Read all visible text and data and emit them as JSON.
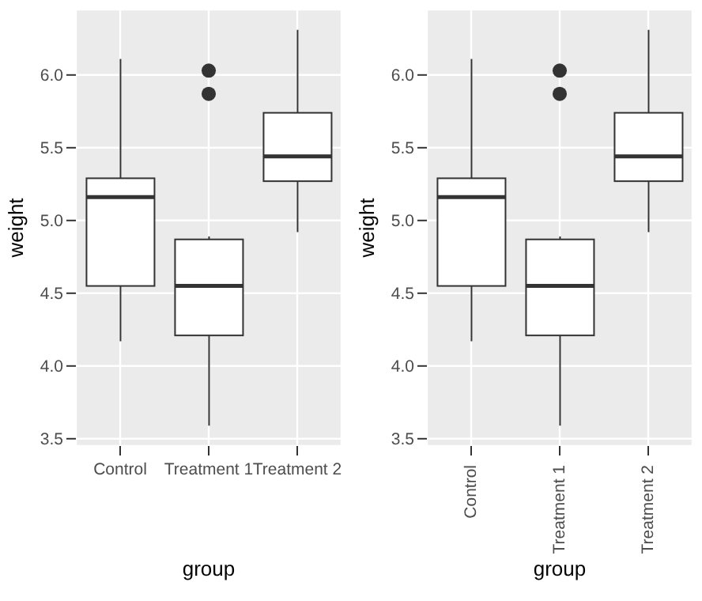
{
  "chart_data": [
    {
      "type": "box",
      "xlabel": "group",
      "ylabel": "weight",
      "categories": [
        "Control",
        "Treatment 1",
        "Treatment 2"
      ],
      "boxes": [
        {
          "low": 4.17,
          "q1": 4.55,
          "median": 5.16,
          "q3": 5.29,
          "high": 6.11
        },
        {
          "low": 3.59,
          "q1": 4.21,
          "median": 4.55,
          "q3": 4.87,
          "high": 4.89,
          "outliers": [
            5.87,
            6.03
          ]
        },
        {
          "low": 4.92,
          "q1": 5.27,
          "median": 5.44,
          "q3": 5.74,
          "high": 6.31
        }
      ],
      "ylim": [
        3.45,
        6.45
      ],
      "yticks": [
        {
          "value": 3.5,
          "label": "3.5"
        },
        {
          "value": 4,
          "label": "4.0"
        },
        {
          "value": 4.5,
          "label": "4.5"
        },
        {
          "value": 5,
          "label": "5.0"
        },
        {
          "value": 5.5,
          "label": "5.5"
        },
        {
          "value": 6,
          "label": "6.0"
        }
      ],
      "grid": true
    },
    {
      "type": "box",
      "xlabel": "group",
      "ylabel": "weight",
      "categories": [
        "Control",
        "Treatment 1",
        "Treatment 2"
      ],
      "boxes": [
        {
          "low": 4.17,
          "q1": 4.55,
          "median": 5.16,
          "q3": 5.29,
          "high": 6.11
        },
        {
          "low": 3.59,
          "q1": 4.21,
          "median": 4.55,
          "q3": 4.87,
          "high": 4.89,
          "outliers": [
            5.87,
            6.03
          ]
        },
        {
          "low": 4.92,
          "q1": 5.27,
          "median": 5.44,
          "q3": 5.74,
          "high": 6.31
        }
      ],
      "ylim": [
        3.45,
        6.45
      ],
      "yticks": [
        {
          "value": 3.5,
          "label": "3.5"
        },
        {
          "value": 4,
          "label": "4.0"
        },
        {
          "value": 4.5,
          "label": "4.5"
        },
        {
          "value": 5,
          "label": "5.0"
        },
        {
          "value": 5.5,
          "label": "5.5"
        },
        {
          "value": 6,
          "label": "6.0"
        }
      ],
      "grid": true
    }
  ]
}
